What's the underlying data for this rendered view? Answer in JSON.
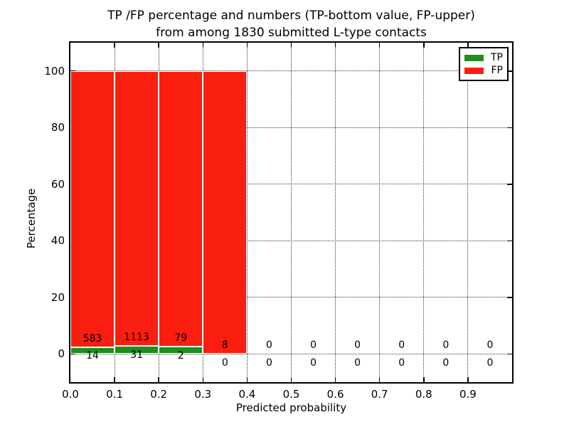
{
  "chart_data": {
    "type": "bar",
    "stacked": true,
    "title_lines": [
      "TP /FP percentage and numbers (TP-bottom value, FP-upper)",
      "from among 1830 submitted L-type contacts"
    ],
    "xlabel": "Predicted probability",
    "ylabel": "Percentage",
    "bin_edges": [
      0.0,
      0.1,
      0.2,
      0.3,
      0.4,
      0.5,
      0.6,
      0.7,
      0.8,
      0.9,
      1.0
    ],
    "series": [
      {
        "name": "TP",
        "color": "#1e8e1e",
        "counts": [
          14,
          31,
          2,
          0,
          0,
          0,
          0,
          0,
          0,
          0
        ],
        "percentages": [
          2.3,
          2.7,
          2.5,
          0,
          0,
          0,
          0,
          0,
          0,
          0
        ]
      },
      {
        "name": "FP",
        "color": "#fa1e10",
        "counts": [
          583,
          1113,
          79,
          8,
          0,
          0,
          0,
          0,
          0,
          0
        ],
        "percentages": [
          97.7,
          97.3,
          97.5,
          100,
          0,
          0,
          0,
          0,
          0,
          0
        ]
      }
    ],
    "xlim": [
      0.0,
      1.0
    ],
    "ylim": [
      -10,
      110
    ],
    "xticks": [
      "0.0",
      "0.1",
      "0.2",
      "0.3",
      "0.4",
      "0.5",
      "0.6",
      "0.7",
      "0.8",
      "0.9"
    ],
    "yticks": [
      0,
      20,
      40,
      60,
      80,
      100
    ],
    "grid": "dotted, both axes",
    "legend_position": "upper right",
    "bar_edge_color": "#ffffff",
    "label_offset_pct": 3.1
  }
}
